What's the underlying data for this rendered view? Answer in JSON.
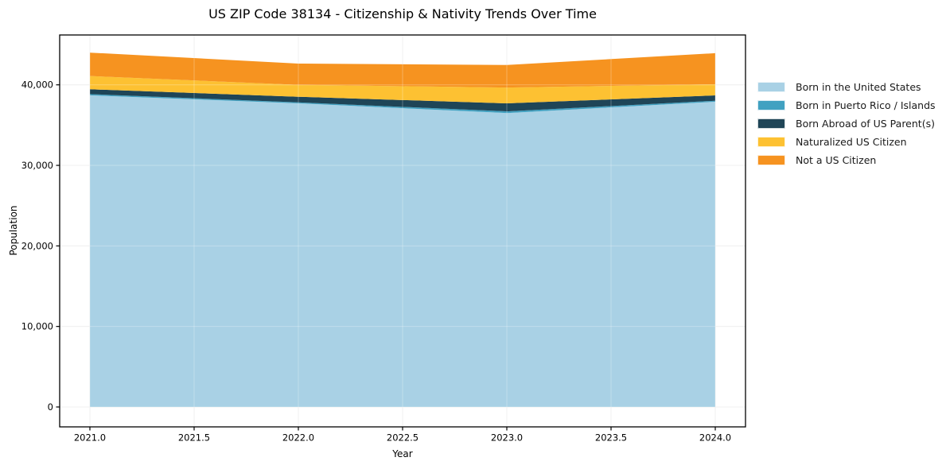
{
  "chart_data": {
    "type": "area",
    "stacked": true,
    "title": "US ZIP Code 38134 - Citizenship & Nativity Trends Over Time",
    "xlabel": "Year",
    "ylabel": "Population",
    "x": [
      2021,
      2022,
      2023,
      2024
    ],
    "series": [
      {
        "name": "Born in the United States",
        "color": "#a9d1e5",
        "values": [
          38700,
          37700,
          36500,
          37900
        ]
      },
      {
        "name": "Born in Puerto Rico / Islands",
        "color": "#41a1c1",
        "values": [
          150,
          120,
          200,
          130
        ]
      },
      {
        "name": "Born Abroad of US Parent(s)",
        "color": "#1f4557",
        "values": [
          600,
          700,
          1000,
          660
        ]
      },
      {
        "name": "Naturalized US Citizen",
        "color": "#fdc132",
        "values": [
          1650,
          1480,
          1970,
          1380
        ]
      },
      {
        "name": "Not a US Citizen",
        "color": "#f69320",
        "values": [
          2900,
          2640,
          2800,
          3860
        ]
      }
    ],
    "xlim": [
      2020.855,
      2024.145
    ],
    "ylim": [
      -2470,
      46190
    ],
    "x_tick_values": [
      2021.0,
      2021.5,
      2022.0,
      2022.5,
      2023.0,
      2023.5,
      2024.0
    ],
    "x_tick_labels": [
      "2021.0",
      "2021.5",
      "2022.0",
      "2022.5",
      "2023.0",
      "2023.5",
      "2024.0"
    ],
    "y_tick_values": [
      0,
      10000,
      20000,
      30000,
      40000
    ],
    "y_tick_labels": [
      "0",
      "10,000",
      "20,000",
      "30,000",
      "40,000"
    ],
    "grid": true,
    "legend_position": "outside-right",
    "colors": {
      "background": "#ffffff",
      "axis": "#000000",
      "grid": "#eaeaea",
      "tick_text": "#000000"
    }
  }
}
